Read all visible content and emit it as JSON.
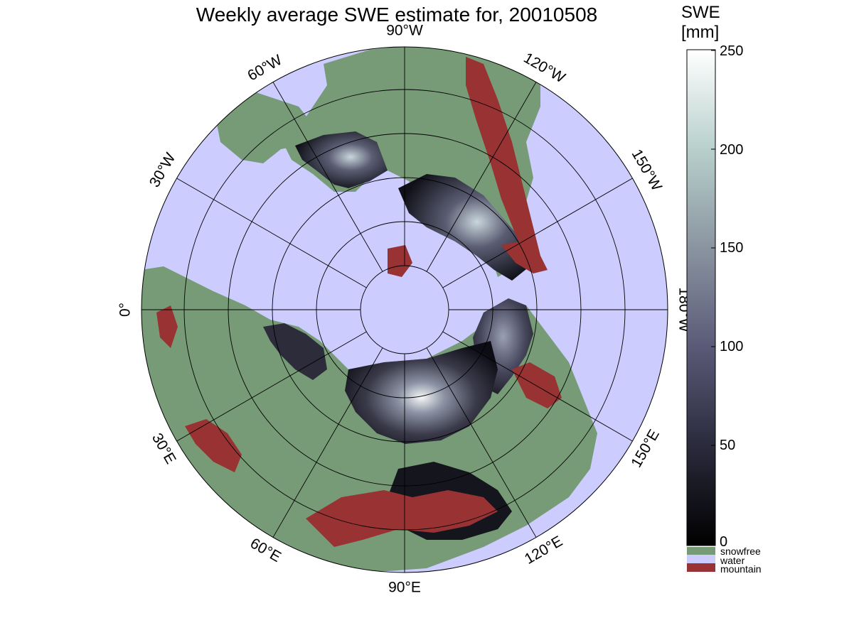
{
  "title": "Weekly average SWE estimate for, 20010508",
  "colorbar": {
    "title_line1": "SWE",
    "title_line2": "[mm]",
    "ticks": [
      "250",
      "200",
      "150",
      "100",
      "50",
      "0"
    ],
    "range": [
      0,
      250
    ],
    "gradient": [
      "#000000",
      "#2a2a3c",
      "#5a5a78",
      "#8a94a0",
      "#b8d0cc",
      "#ffffff"
    ]
  },
  "legend": [
    {
      "label": "snowfree",
      "color": "#779b76"
    },
    {
      "label": "water",
      "color": "#ccccff"
    },
    {
      "label": "mountain",
      "color": "#993333"
    }
  ],
  "longitude_labels": [
    {
      "text": "90°W",
      "angle": 0
    },
    {
      "text": "120°W",
      "angle": 30
    },
    {
      "text": "150°W",
      "angle": 60
    },
    {
      "text": "180°W",
      "angle": 90
    },
    {
      "text": "150°E",
      "angle": 120
    },
    {
      "text": "120°E",
      "angle": 150
    },
    {
      "text": "90°E",
      "angle": 180
    },
    {
      "text": "60°E",
      "angle": 210
    },
    {
      "text": "30°E",
      "angle": 240
    },
    {
      "text": "0°",
      "angle": 270
    },
    {
      "text": "30°W",
      "angle": 300
    },
    {
      "text": "60°W",
      "angle": 330
    }
  ],
  "colors": {
    "snowfree": "#779b76",
    "water": "#ccccff",
    "mountain": "#993333",
    "snow_low": "#0a0a12",
    "snow_high": "#ffffff"
  }
}
